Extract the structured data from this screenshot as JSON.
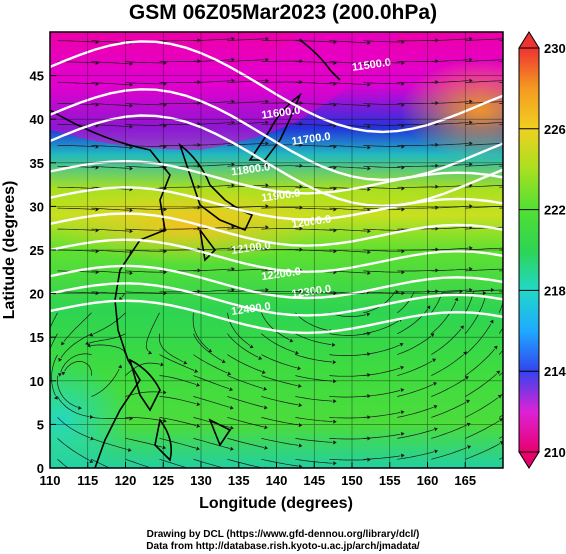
{
  "title": "GSM 06Z05Mar2023 (200.0hPa)",
  "map": {
    "xaxis": {
      "label": "Longitude (degrees)",
      "range": [
        110,
        170
      ],
      "ticks": [
        "110",
        "115",
        "120",
        "125",
        "130",
        "135",
        "140",
        "145",
        "150",
        "155",
        "160",
        "165"
      ]
    },
    "yaxis": {
      "label": "Latitude  (degrees)",
      "range": [
        0,
        50
      ],
      "ticks": [
        "0",
        "5",
        "10",
        "15",
        "20",
        "25",
        "30",
        "35",
        "40",
        "45"
      ]
    },
    "field": "temperature (shaded) with geopotential height contours and wind streamlines",
    "contour_labels": [
      "11500.0",
      "11600.0",
      "11700.0",
      "11800.0",
      "11900.0",
      "12000.0",
      "12100.0",
      "12200.0",
      "12300.0",
      "12400.0"
    ],
    "contour_latitudes": [
      46,
      40.5,
      37.5,
      34,
      31,
      28,
      25,
      22,
      20,
      18
    ]
  },
  "colorbar": {
    "range": [
      210,
      230
    ],
    "ticks": [
      "210",
      "214",
      "218",
      "222",
      "226",
      "230"
    ],
    "stops": [
      "#e8006f",
      "#dd22d6",
      "#3344ee",
      "#1eaaff",
      "#22d8c8",
      "#2ed452",
      "#52e034",
      "#a8e020",
      "#f0d020",
      "#f59a20",
      "#ee3333"
    ]
  },
  "credits": {
    "line1": "Drawing by DCL (https://www.gfd-dennou.org/library/dcl/)",
    "line2": "Data from http://database.rish.kyoto-u.ac.jp/arch/jmadata/"
  }
}
